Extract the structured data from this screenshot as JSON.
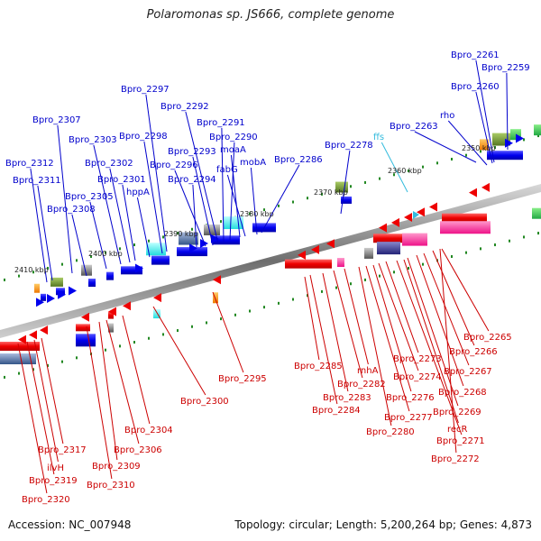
{
  "title": "Polaromonas sp. JS666, complete genome",
  "accession_label": "Accession: NC_007948",
  "summary_label": "Topology: circular; Length: 5,200,264 bp; Genes: 4,873",
  "colors": {
    "backbone": "#8c8c8c",
    "forward_label": "#0000cc",
    "reverse_label": "#cc0000",
    "rna_label": "#33bbdd",
    "tick": "#228822",
    "kbp_label": "#222222"
  },
  "kbp_ticks": [
    {
      "label": "2350 kbp"
    },
    {
      "label": "2360 kbp"
    },
    {
      "label": "2370 kbp"
    },
    {
      "label": "2380 kbp"
    },
    {
      "label": "2390 kbp"
    },
    {
      "label": "2400 kbp"
    },
    {
      "label": "2410 kbp"
    }
  ],
  "forward_genes": [
    "Bpro_2261",
    "Bpro_2259",
    "Bpro_2260",
    "rho",
    "Bpro_2263",
    "Bpro_2278",
    "Bpro_2286",
    "mobA",
    "fabG",
    "moaA",
    "Bpro_2290",
    "Bpro_2291",
    "Bpro_2292",
    "Bpro_2293",
    "Bpro_2294",
    "Bpro_2296",
    "Bpro_2297",
    "Bpro_2298",
    "hppA",
    "Bpro_2301",
    "Bpro_2302",
    "Bpro_2303",
    "Bpro_2305",
    "Bpro_2307",
    "Bpro_2308",
    "Bpro_2311",
    "Bpro_2312"
  ],
  "rna_genes": [
    "ffs"
  ],
  "reverse_genes": [
    "Bpro_2265",
    "Bpro_2266",
    "Bpro_2267",
    "Bpro_2268",
    "Bpro_2269",
    "recR",
    "Bpro_2271",
    "Bpro_2272",
    "Bpro_2273",
    "Bpro_2274",
    "Bpro_2276",
    "Bpro_2277",
    "Bpro_2280",
    "rnhA",
    "Bpro_2282",
    "Bpro_2283",
    "Bpro_2284",
    "Bpro_2285",
    "Bpro_2295",
    "Bpro_2300",
    "Bpro_2304",
    "Bpro_2306",
    "Bpro_2309",
    "Bpro_2310",
    "Bpro_2317",
    "ilvH",
    "Bpro_2319",
    "Bpro_2320"
  ]
}
